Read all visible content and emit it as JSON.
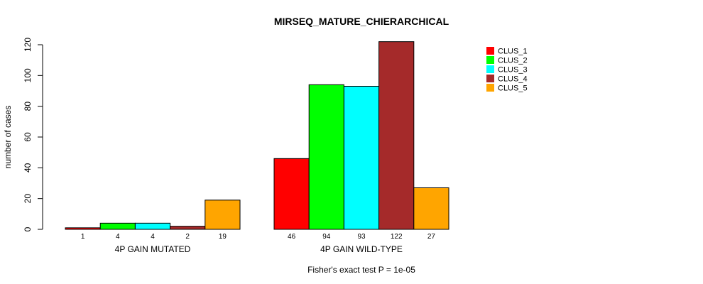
{
  "chart_data": {
    "type": "bar",
    "title": "MIRSEQ_MATURE_CHIERARCHICAL",
    "ylabel": "number of cases",
    "xlabel": "",
    "ylim": [
      0,
      120
    ],
    "yticks": [
      0,
      20,
      40,
      60,
      80,
      100,
      120
    ],
    "groups": [
      "4P GAIN MUTATED",
      "4P GAIN WILD-TYPE"
    ],
    "series": [
      {
        "name": "CLUS_1",
        "color": "#ff0000",
        "values": [
          1,
          46
        ]
      },
      {
        "name": "CLUS_2",
        "color": "#00ff00",
        "values": [
          4,
          94
        ]
      },
      {
        "name": "CLUS_3",
        "color": "#00ffff",
        "values": [
          4,
          93
        ]
      },
      {
        "name": "CLUS_4",
        "color": "#a52a2a",
        "values": [
          2,
          122
        ]
      },
      {
        "name": "CLUS_5",
        "color": "#ffa500",
        "values": [
          19,
          27
        ]
      }
    ],
    "legend_position": "top-right",
    "grid": false,
    "footnote": "Fisher's exact test P = 1e-05"
  }
}
